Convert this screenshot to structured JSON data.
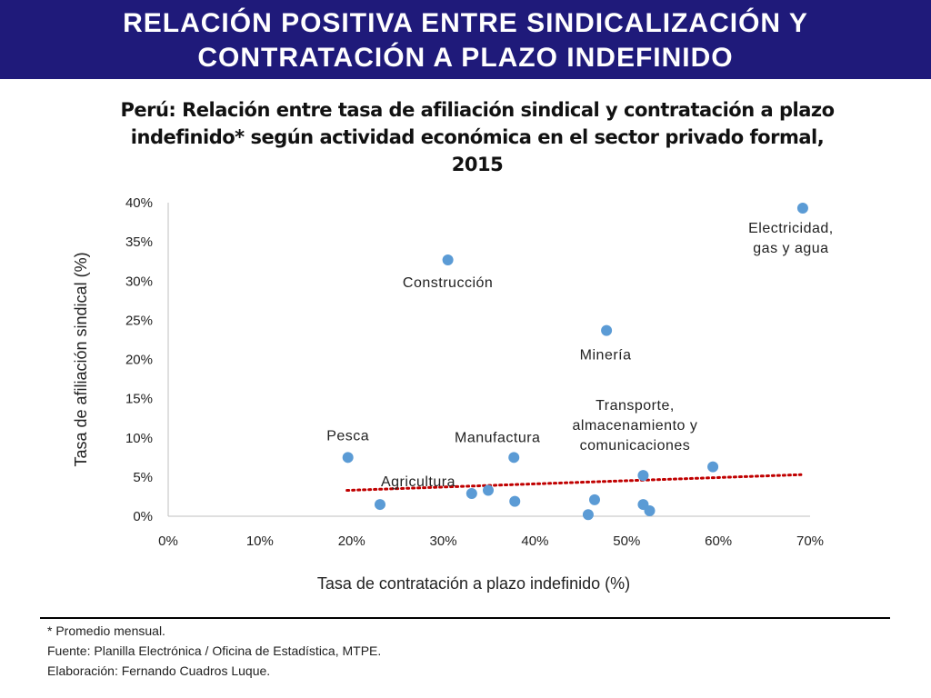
{
  "banner": {
    "title": "RELACIÓN POSITIVA ENTRE SINDICALIZACIÓN Y\nCONTRATACIÓN A PLAZO INDEFINIDO"
  },
  "chart_data": {
    "type": "scatter",
    "title": "Perú: Relación entre tasa de afiliación sindical y contratación a plazo\nindefinido* según actividad económica en el sector privado formal,\n2015",
    "xlabel": "Tasa de contratación a plazo indefinido (%)",
    "ylabel": "Tasa de afiliación sindical (%)",
    "xlim": [
      0,
      70
    ],
    "ylim": [
      0,
      40
    ],
    "x_ticks": [
      "0%",
      "10%",
      "20%",
      "30%",
      "40%",
      "50%",
      "60%",
      "70%"
    ],
    "y_ticks": [
      "0%",
      "5%",
      "10%",
      "15%",
      "20%",
      "25%",
      "30%",
      "35%",
      "40%"
    ],
    "grid": false,
    "marker_color": "#5b9bd5",
    "trendline": {
      "style": "dotted",
      "color": "#c00000",
      "x": [
        19.5,
        69
      ],
      "y": [
        3.3,
        5.3
      ]
    },
    "points": [
      {
        "x": 19.6,
        "y": 7.5,
        "label": "Pesca"
      },
      {
        "x": 23.1,
        "y": 1.5,
        "label": "Agricultura"
      },
      {
        "x": 30.5,
        "y": 32.7,
        "label": "Construcción"
      },
      {
        "x": 33.1,
        "y": 2.9,
        "label": ""
      },
      {
        "x": 34.9,
        "y": 3.3,
        "label": ""
      },
      {
        "x": 37.7,
        "y": 7.5,
        "label": "Manufactura"
      },
      {
        "x": 37.8,
        "y": 1.9,
        "label": ""
      },
      {
        "x": 45.8,
        "y": 0.2,
        "label": ""
      },
      {
        "x": 46.5,
        "y": 2.1,
        "label": ""
      },
      {
        "x": 47.8,
        "y": 23.7,
        "label": "Minería"
      },
      {
        "x": 51.8,
        "y": 5.2,
        "label": "Transporte,\nalmacenamiento y\ncomunicaciones"
      },
      {
        "x": 51.8,
        "y": 1.5,
        "label": ""
      },
      {
        "x": 52.5,
        "y": 0.7,
        "label": ""
      },
      {
        "x": 59.4,
        "y": 6.3,
        "label": ""
      },
      {
        "x": 69.2,
        "y": 39.3,
        "label": "Electricidad,\ngas y agua"
      }
    ]
  },
  "footer": {
    "note": "* Promedio mensual.",
    "source": "Fuente: Planilla Electrónica / Oficina de Estadística, MTPE.",
    "author": "Elaboración: Fernando Cuadros Luque."
  }
}
